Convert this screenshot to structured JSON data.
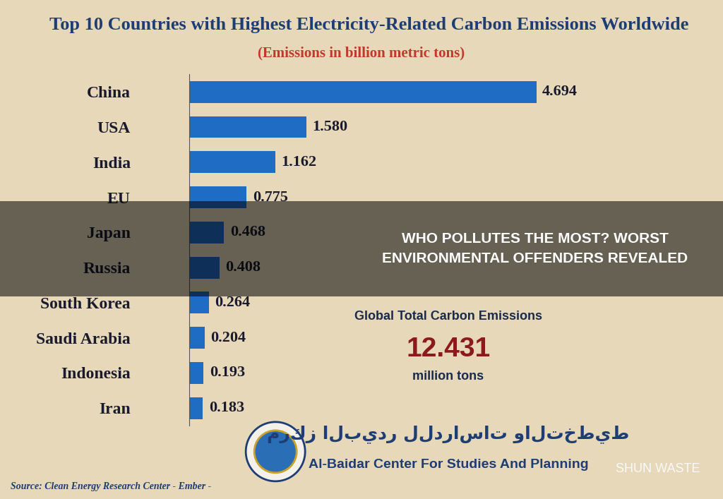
{
  "chart_data": {
    "type": "bar",
    "orientation": "horizontal",
    "title": "Top 10 Countries with Highest Electricity-Related Carbon Emissions Worldwide",
    "subtitle": "(Emissions in billion metric tons)",
    "categories": [
      "China",
      "USA",
      "India",
      "EU",
      "Japan",
      "Russia",
      "South Korea",
      "Saudi Arabia",
      "Indonesia",
      "Iran"
    ],
    "values": [
      4.694,
      1.58,
      1.162,
      0.775,
      0.468,
      0.408,
      0.264,
      0.204,
      0.193,
      0.183
    ],
    "value_labels": [
      "4.694",
      "1.580",
      "1.162",
      "0.775",
      "0.468",
      "0.408",
      "0.264",
      "0.204",
      "0.193",
      "0.183"
    ],
    "color": "#1f6cc4",
    "data_labels": true,
    "tick_labels": "y",
    "grid": false,
    "annotations": {
      "banner": "WHO POLLUTES THE MOST? WORST\nENVIRONMENTAL OFFENDERS REVEALED",
      "inset_title": "Global Total Carbon Emissions",
      "inset_value": "12.431",
      "inset_unit": "million tons",
      "source": "Source: Clean Energy Research Center - Ember -",
      "logo_arabic": "مركز البيدر للدراسات والتخطيط",
      "logo_english": "Al-Baidar Center For Studies And Planning",
      "watermark": "SHUN WASTE"
    }
  }
}
